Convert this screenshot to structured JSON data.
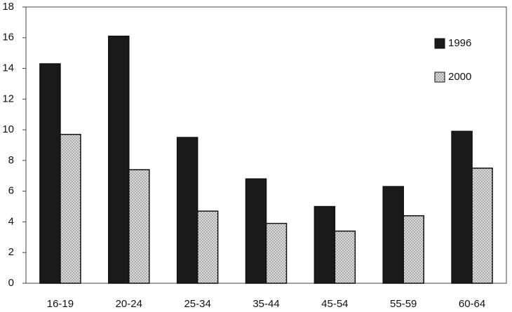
{
  "chart_data": {
    "type": "bar",
    "categories": [
      "16-19",
      "20-24",
      "25-34",
      "35-44",
      "45-54",
      "55-59",
      "60-64"
    ],
    "series": [
      {
        "name": "1996",
        "color": "#1a1a1a",
        "values": [
          14.3,
          16.1,
          9.5,
          6.8,
          5.0,
          6.3,
          9.9
        ]
      },
      {
        "name": "2000",
        "color": "#dcdcdc",
        "values": [
          9.7,
          7.4,
          4.7,
          3.9,
          3.4,
          4.4,
          7.5
        ]
      }
    ],
    "ylim": [
      0,
      18
    ],
    "yticks": [
      0,
      2,
      4,
      6,
      8,
      10,
      12,
      14,
      16,
      18
    ],
    "grid": false,
    "legend": "upper right"
  }
}
